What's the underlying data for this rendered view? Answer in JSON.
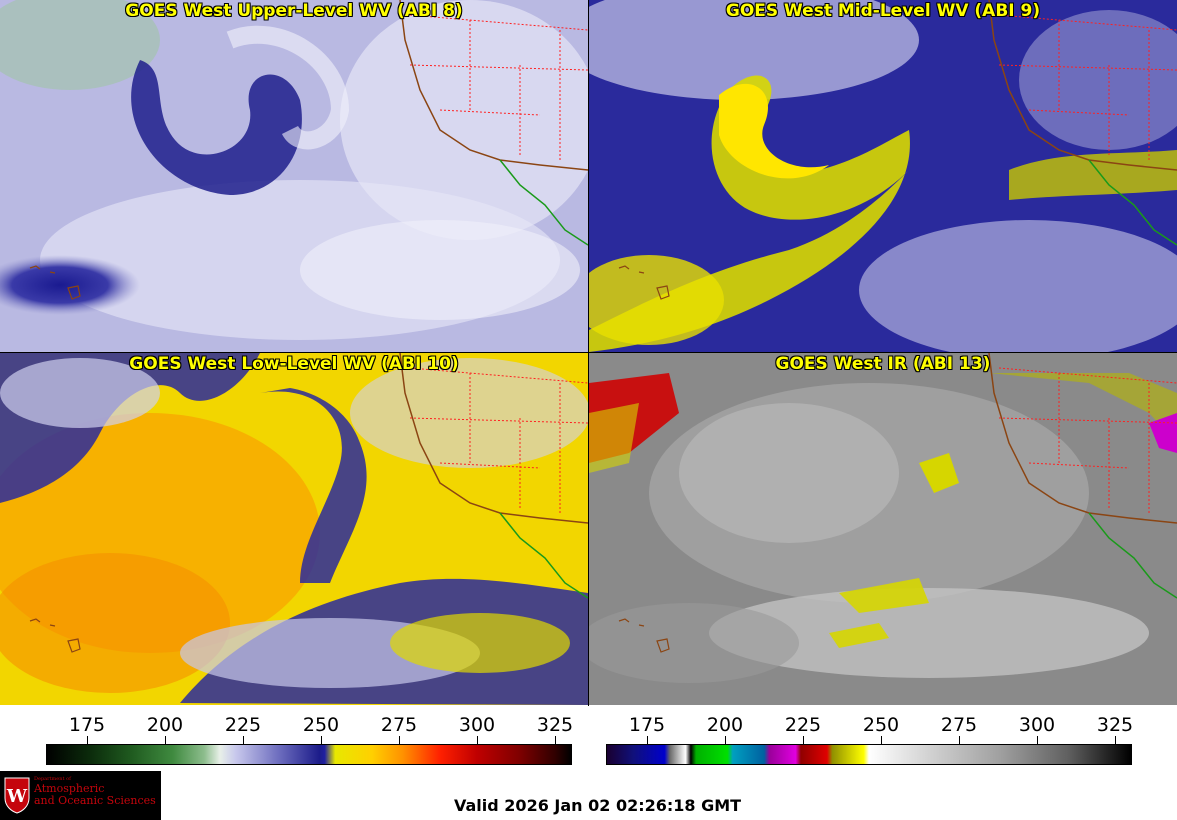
{
  "panels": [
    {
      "title": "GOES West Upper-Level WV (ABI 8)"
    },
    {
      "title": "GOES West Mid-Level WV (ABI 9)"
    },
    {
      "title": "GOES West Low-Level WV (ABI 10)"
    },
    {
      "title": "GOES West IR (ABI 13)"
    }
  ],
  "colorbars": {
    "wv": {
      "ticks": [
        "175",
        "200",
        "225",
        "250",
        "275",
        "300",
        "325"
      ]
    },
    "ir": {
      "ticks": [
        "175",
        "200",
        "225",
        "250",
        "275",
        "300",
        "325"
      ]
    }
  },
  "logo": {
    "small_text": "Department of",
    "line1": "Atmospheric",
    "line2": "and Oceanic Sciences"
  },
  "valid_time": "Valid 2026 Jan 02 02:26:18 GMT",
  "colors": {
    "title_text": "#ffff00",
    "state_borders": "#ff2020",
    "coastline_us": "#8b4513",
    "coastline_mexico": "#1a9a1a",
    "logo_red": "#c5050c"
  }
}
